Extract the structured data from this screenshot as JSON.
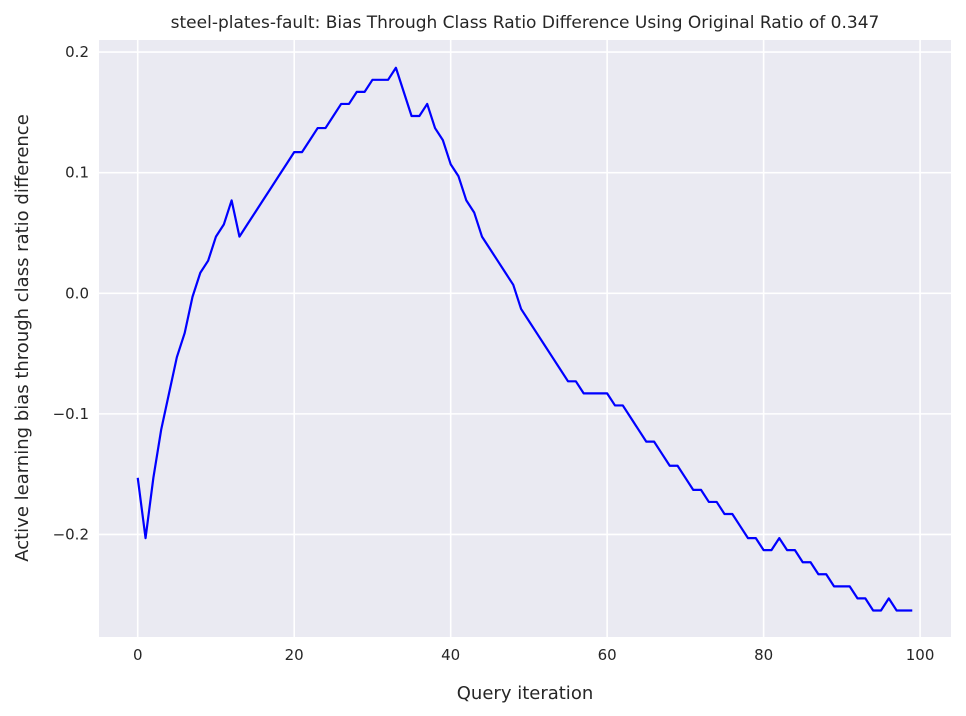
{
  "chart_data": {
    "type": "line",
    "title": "steel-plates-fault: Bias Through Class Ratio Difference Using Original Ratio of 0.347",
    "xlabel": "Query iteration",
    "ylabel": "Active learning bias through class ratio difference",
    "xlim": [
      -4.95,
      103.95
    ],
    "ylim": [
      -0.285,
      0.21
    ],
    "xticks": [
      0,
      20,
      40,
      60,
      80,
      100
    ],
    "yticks": [
      -0.2,
      -0.1,
      0.0,
      0.1,
      0.2
    ],
    "xtick_labels": [
      "0",
      "20",
      "40",
      "60",
      "80",
      "100"
    ],
    "ytick_labels": [
      "−0.2",
      "−0.1",
      "0.0",
      "0.1",
      "0.2"
    ],
    "grid": true,
    "background": "#eaeaf2",
    "grid_color": "#ffffff",
    "series": [
      {
        "color": "#0000ff",
        "x": [
          0,
          1,
          2,
          3,
          4,
          5,
          6,
          7,
          8,
          9,
          10,
          11,
          12,
          13,
          14,
          15,
          16,
          17,
          18,
          19,
          20,
          21,
          22,
          23,
          24,
          25,
          26,
          27,
          28,
          29,
          30,
          31,
          32,
          33,
          34,
          35,
          36,
          37,
          38,
          39,
          40,
          41,
          42,
          43,
          44,
          45,
          46,
          47,
          48,
          49,
          50,
          51,
          52,
          53,
          54,
          55,
          56,
          57,
          58,
          59,
          60,
          61,
          62,
          63,
          64,
          65,
          66,
          67,
          68,
          69,
          70,
          71,
          72,
          73,
          74,
          75,
          76,
          77,
          78,
          79,
          80,
          81,
          82,
          83,
          84,
          85,
          86,
          87,
          88,
          89,
          90,
          91,
          92,
          93,
          94,
          95,
          96,
          97,
          98,
          99
        ],
        "y": [
          -0.153,
          -0.203,
          -0.153,
          -0.113,
          -0.083,
          -0.053,
          -0.033,
          -0.003,
          0.017,
          0.027,
          0.047,
          0.057,
          0.077,
          0.047,
          0.057,
          0.067,
          0.077,
          0.087,
          0.097,
          0.107,
          0.117,
          0.117,
          0.127,
          0.137,
          0.137,
          0.147,
          0.157,
          0.157,
          0.167,
          0.167,
          0.177,
          0.177,
          0.177,
          0.187,
          0.167,
          0.147,
          0.147,
          0.157,
          0.137,
          0.127,
          0.107,
          0.097,
          0.077,
          0.067,
          0.047,
          0.037,
          0.027,
          0.017,
          0.007,
          -0.013,
          -0.023,
          -0.033,
          -0.043,
          -0.053,
          -0.063,
          -0.073,
          -0.073,
          -0.083,
          -0.083,
          -0.083,
          -0.083,
          -0.093,
          -0.093,
          -0.103,
          -0.113,
          -0.123,
          -0.123,
          -0.133,
          -0.143,
          -0.143,
          -0.153,
          -0.163,
          -0.163,
          -0.173,
          -0.173,
          -0.183,
          -0.183,
          -0.193,
          -0.203,
          -0.203,
          -0.213,
          -0.213,
          -0.203,
          -0.213,
          -0.213,
          -0.223,
          -0.223,
          -0.233,
          -0.233,
          -0.243,
          -0.243,
          -0.243,
          -0.253,
          -0.253,
          -0.263,
          -0.263,
          -0.253,
          -0.263,
          -0.263,
          -0.263
        ]
      }
    ]
  }
}
